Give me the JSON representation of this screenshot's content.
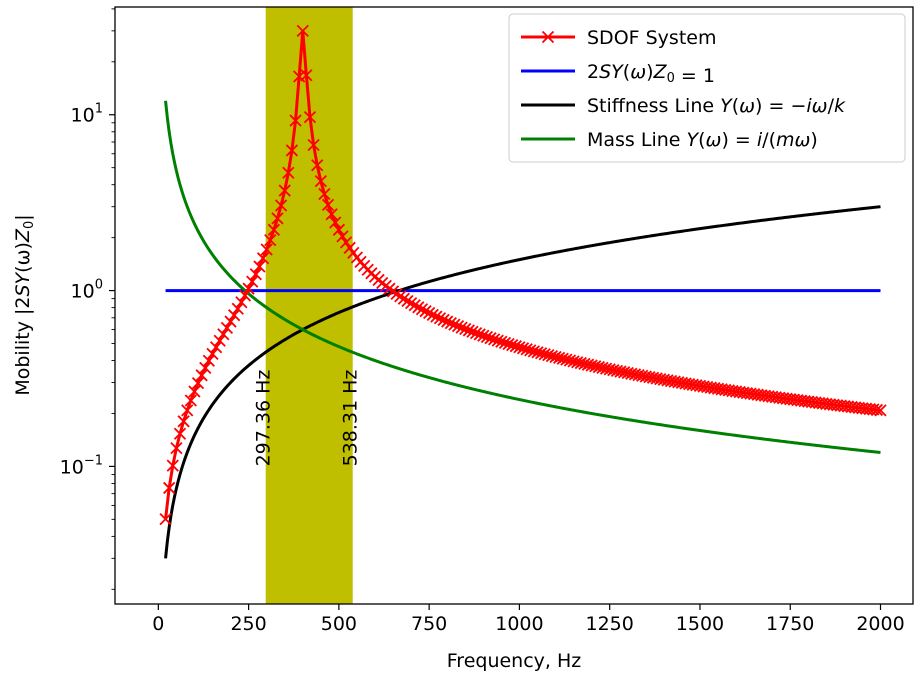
{
  "chart_data": {
    "type": "line",
    "xlabel": "Frequency, Hz",
    "ylabel": "Mobility |2SY(ω)Z₀|",
    "ylabel_parts": {
      "prefix": "Mobility |2",
      "sy": "SY",
      "omega": "(ω)",
      "z": "Z",
      "sub": "0",
      "suffix": "|"
    },
    "yscale": "log",
    "xlim": [
      -120,
      2090
    ],
    "ylim": [
      0.0165,
      41
    ],
    "x_ticks": [
      0,
      250,
      500,
      750,
      1000,
      1250,
      1500,
      1750,
      2000
    ],
    "x_tick_labels": [
      "0",
      "250",
      "500",
      "750",
      "1000",
      "1250",
      "1500",
      "1750",
      "2000"
    ],
    "y_ticks": [
      0.1,
      1,
      10
    ],
    "y_tick_labels": [
      {
        "base": "10",
        "exp": "−1"
      },
      {
        "base": "10",
        "exp": "0"
      },
      {
        "base": "10",
        "exp": "1"
      }
    ],
    "grid": false,
    "legend_position": "top-right",
    "band": {
      "x0": 297.36,
      "x1": 538.31,
      "color": "#bfbf00"
    },
    "annotations": [
      {
        "text": "297.36 Hz",
        "x": 297.36,
        "y": 0.1
      },
      {
        "text": "538.31 Hz",
        "x": 538.31,
        "y": 0.1
      }
    ],
    "params": {
      "f0": 400,
      "q_peak": 30,
      "f_start": 20,
      "f_end": 2000
    },
    "series": [
      {
        "name": "SDOF System",
        "legend_parts": [
          {
            "t": "SDOF System",
            "i": false
          }
        ],
        "color": "#ff0000",
        "marker": "x",
        "x": [
          20,
          400,
          2000
        ],
        "values": [
          0.03,
          30,
          0.125
        ]
      },
      {
        "name": "2SY(ω)Z0 = 1",
        "legend_parts": [
          {
            "t": "2",
            "i": false
          },
          {
            "t": "SY",
            "i": true
          },
          {
            "t": "(",
            "i": false
          },
          {
            "t": "ω",
            "i": true
          },
          {
            "t": ")",
            "i": false
          },
          {
            "t": "Z",
            "i": true
          },
          {
            "t": "0",
            "i": false,
            "sub": true
          },
          {
            "t": " = 1",
            "i": false
          }
        ],
        "color": "#0000ff",
        "x": [
          20,
          2000
        ],
        "values": [
          1,
          1
        ]
      },
      {
        "name": "Stiffness Line Y(ω) = −iω/k",
        "legend_parts": [
          {
            "t": "Stiffness Line ",
            "i": false
          },
          {
            "t": "Y",
            "i": true
          },
          {
            "t": "(",
            "i": false
          },
          {
            "t": "ω",
            "i": true
          },
          {
            "t": ") = −",
            "i": false
          },
          {
            "t": "iω",
            "i": true
          },
          {
            "t": "/",
            "i": false
          },
          {
            "t": "k",
            "i": true
          }
        ],
        "color": "#000000",
        "x": [
          20,
          2000
        ],
        "values": [
          0.03,
          3
        ]
      },
      {
        "name": "Mass Line Y(ω) = i/(mω)",
        "legend_parts": [
          {
            "t": "Mass Line ",
            "i": false
          },
          {
            "t": "Y",
            "i": true
          },
          {
            "t": "(",
            "i": false
          },
          {
            "t": "ω",
            "i": true
          },
          {
            "t": ") = ",
            "i": false
          },
          {
            "t": "i",
            "i": true
          },
          {
            "t": "/(",
            "i": false
          },
          {
            "t": "mω",
            "i": true
          },
          {
            "t": ")",
            "i": false
          }
        ],
        "color": "#008000",
        "x": [
          20,
          2000
        ],
        "values": [
          12,
          0.12
        ]
      }
    ]
  }
}
